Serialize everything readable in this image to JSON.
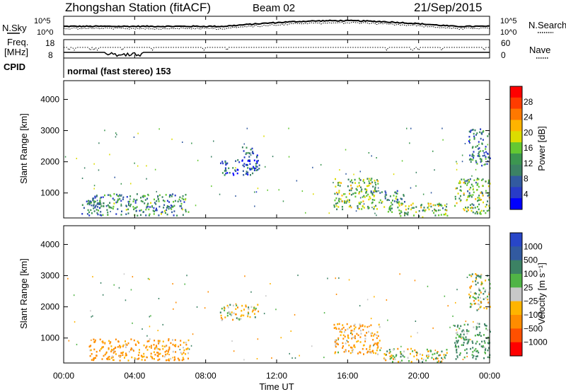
{
  "header": {
    "station": "Zhongshan Station (fitACF)",
    "beam": "Beam 02",
    "date": "21/Sep/2015"
  },
  "top_panel": {
    "left_label": "N.Sky",
    "right_label": "N.Search",
    "left_ticks": [
      "10^5",
      "10^0"
    ],
    "right_ticks": [
      "10^5",
      "10^0"
    ]
  },
  "freq_panel": {
    "left_label_1": "Freq.",
    "left_label_2": "[MHz]",
    "right_label": "Nave",
    "left_ticks": [
      "18",
      "8"
    ],
    "right_ticks": [
      "60",
      "0"
    ]
  },
  "cpid_panel": {
    "label": "CPID",
    "text": "normal (fast stereo) 153"
  },
  "power_panel": {
    "ylabel": "Slant Range [km]",
    "yticks": [
      "4000",
      "3000",
      "2000",
      "1000"
    ],
    "colorbar_label": "Power [dB]",
    "colorbar_ticks": [
      "28",
      "24",
      "20",
      "16",
      "12",
      "8",
      "4"
    ],
    "colorbar_colors": [
      "#ff0000",
      "#ff3c00",
      "#ff7800",
      "#ffb400",
      "#dcdc00",
      "#64c832",
      "#3c9650",
      "#3c8264",
      "#325aa0",
      "#283cc8",
      "#0000ff"
    ]
  },
  "velocity_panel": {
    "ylabel": "Slant Range [km]",
    "yticks": [
      "4000",
      "3000",
      "2000",
      "1000"
    ],
    "colorbar_label": "Velocity [m s⁻¹]",
    "colorbar_ticks": [
      "1000",
      "500",
      "100",
      "25",
      "−25",
      "−100",
      "−500",
      "−1000"
    ],
    "colorbar_colors": [
      "#2846c8",
      "#325aa0",
      "#3c8264",
      "#50b446",
      "#c8c8c8",
      "#ffb400",
      "#ff8c00",
      "#ff5000",
      "#ff0000"
    ]
  },
  "xaxis": {
    "label": "Time UT",
    "ticks": [
      "00:00",
      "04:00",
      "08:00",
      "12:00",
      "16:00",
      "20:00",
      "00:00"
    ]
  },
  "chart_data": {
    "type": "heatmap",
    "x_unit": "hours UT",
    "xlim": [
      0,
      24
    ],
    "ylim": [
      200,
      4600
    ],
    "power_range": [
      0,
      30
    ],
    "velocity_range": [
      -1200,
      1200
    ],
    "power_clusters": [
      {
        "t": [
          1.4,
          7.0
        ],
        "r": [
          300,
          1000
        ],
        "p": 10
      },
      {
        "t": [
          1.0,
          2.2
        ],
        "r": [
          350,
          800
        ],
        "p": 8
      },
      {
        "t": [
          8.8,
          11.0
        ],
        "r": [
          1600,
          2100
        ],
        "p": 6
      },
      {
        "t": [
          10.0,
          10.9
        ],
        "r": [
          1800,
          2500
        ],
        "p": 6
      },
      {
        "t": [
          15.2,
          17.8
        ],
        "r": [
          500,
          1500
        ],
        "p": 14
      },
      {
        "t": [
          17.2,
          19.2
        ],
        "r": [
          700,
          1100
        ],
        "p": 10
      },
      {
        "t": [
          18.0,
          21.6
        ],
        "r": [
          250,
          700
        ],
        "p": 14
      },
      {
        "t": [
          22.0,
          24.0
        ],
        "r": [
          350,
          1500
        ],
        "p": 14
      },
      {
        "t": [
          22.8,
          24.0
        ],
        "r": [
          1900,
          3100
        ],
        "p": 8
      }
    ],
    "velocity_clusters": [
      {
        "t": [
          1.4,
          7.0
        ],
        "r": [
          300,
          1000
        ],
        "v": -150
      },
      {
        "t": [
          8.8,
          11.0
        ],
        "r": [
          1600,
          2100
        ],
        "v": 0
      },
      {
        "t": [
          15.2,
          17.8
        ],
        "r": [
          500,
          1500
        ],
        "v": -120
      },
      {
        "t": [
          18.0,
          21.6
        ],
        "r": [
          250,
          700
        ],
        "v": 0
      },
      {
        "t": [
          22.0,
          24.0
        ],
        "r": [
          350,
          1500
        ],
        "v": 150
      },
      {
        "t": [
          22.8,
          24.0
        ],
        "r": [
          1900,
          3100
        ],
        "v": 20
      }
    ]
  }
}
